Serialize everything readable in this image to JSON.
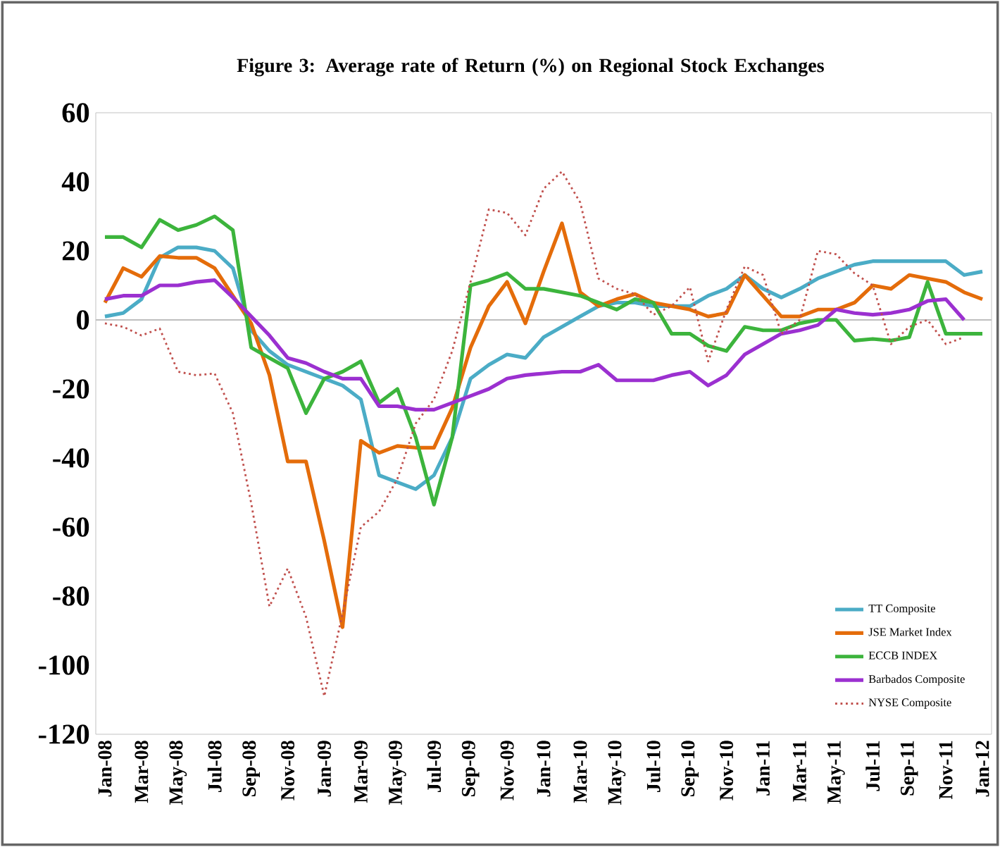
{
  "chart_data": {
    "type": "line",
    "title": "Figure 3: Average rate of Return (%) on Regional Stock Exchanges",
    "categories": [
      "Jan-08",
      null,
      "Mar-08",
      null,
      "May-08",
      null,
      "Jul-08",
      null,
      "Sep-08",
      null,
      "Nov-08",
      null,
      "Jan-09",
      null,
      "Mar-09",
      null,
      "May-09",
      null,
      "Jul-09",
      null,
      "Sep-09",
      null,
      "Nov-09",
      null,
      "Jan-10",
      null,
      "Mar-10",
      null,
      "May-10",
      null,
      "Jul-10",
      null,
      "Sep-10",
      null,
      "Nov-10",
      null,
      "Jan-11",
      null,
      "Mar-11",
      null,
      "May-11",
      null,
      "Jul-11",
      null,
      "Sep-11",
      null,
      "Nov-11",
      null,
      "Jan-12"
    ],
    "ylim": [
      -120,
      60
    ],
    "yticks": [
      -120,
      -100,
      -80,
      -60,
      -40,
      -20,
      0,
      20,
      40,
      60
    ],
    "legend": "bottom right",
    "ref_lines": [
      {
        "axis": "y",
        "value": 0,
        "color": "#bfbfbf"
      }
    ],
    "series": [
      {
        "name": "TT Composite",
        "color": "#4bacc6",
        "values": [
          1,
          2,
          6,
          18,
          21,
          21,
          20,
          15,
          -3,
          -9,
          -13,
          -15,
          -17,
          -19,
          -23,
          -45,
          -47,
          -49,
          -45,
          -34,
          -17,
          -13,
          -10,
          -11,
          -5,
          -2,
          1,
          4,
          5,
          5,
          4,
          4,
          4,
          7,
          9,
          13,
          9,
          6.5,
          9,
          12,
          14,
          16,
          17,
          17,
          17,
          17,
          17,
          13,
          14
        ]
      },
      {
        "name": "JSE Market Index",
        "color": "#e46c0a",
        "values": [
          5,
          15,
          12.5,
          18.5,
          18,
          18,
          15,
          7,
          -1,
          -16,
          -41,
          -41,
          -64,
          -89,
          -35,
          -38.5,
          -36.5,
          -37,
          -37,
          -25.5,
          -8,
          4,
          11,
          -1,
          14,
          28,
          8,
          4,
          6,
          7.5,
          5,
          4,
          3,
          1,
          2,
          13,
          7,
          1,
          1,
          3,
          3,
          5,
          10,
          9,
          13,
          12,
          11,
          8,
          6
        ]
      },
      {
        "name": "ECCB INDEX",
        "color": "#3cb43c",
        "values": [
          24,
          24,
          21,
          29,
          26,
          27.5,
          30,
          26,
          -8,
          -11,
          -14,
          -27,
          -17,
          -15,
          -12,
          -24,
          -20,
          -34,
          -53.5,
          -34,
          10,
          11.5,
          13.5,
          9,
          9,
          8,
          7,
          5,
          3,
          6,
          5,
          -4,
          -4,
          -7.5,
          -9,
          -2,
          -3,
          -3,
          -1,
          0,
          0,
          -6,
          -5.5,
          -6,
          -5,
          11,
          -4,
          -4,
          -4
        ]
      },
      {
        "name": "Barbados Composite",
        "color": "#9b30d0",
        "values": [
          6,
          7,
          7,
          10,
          10,
          11,
          11.5,
          6.5,
          1,
          -4.5,
          -11,
          -12.5,
          -15,
          -17,
          -17,
          -25,
          -25,
          -26,
          -26,
          -24,
          -22,
          -20,
          -17,
          -16,
          -15.5,
          -15,
          -15,
          -13,
          -17.5,
          -17.5,
          -17.5,
          -16,
          -15,
          -19,
          -16,
          -10,
          -7,
          -4,
          -3,
          -1.5,
          3,
          2,
          1.5,
          2,
          3,
          5.5,
          6,
          0,
          null
        ]
      },
      {
        "name": "NYSE Composite",
        "color": "#c0504d",
        "line_style": "dotted",
        "values": [
          -1,
          -2,
          -4.5,
          -2.5,
          -15,
          -16,
          -15.5,
          -27,
          -53,
          -83,
          -72,
          -86,
          -109,
          -85,
          -60,
          -55.5,
          -46,
          -30,
          -23,
          -9,
          11,
          32,
          31,
          24.5,
          38,
          43,
          34,
          12,
          9,
          7.5,
          1.5,
          4,
          9.5,
          -12,
          3,
          15.5,
          13,
          -4,
          0,
          20,
          19,
          13.5,
          10,
          -7,
          -2,
          0,
          -7,
          -5,
          null
        ]
      }
    ]
  }
}
